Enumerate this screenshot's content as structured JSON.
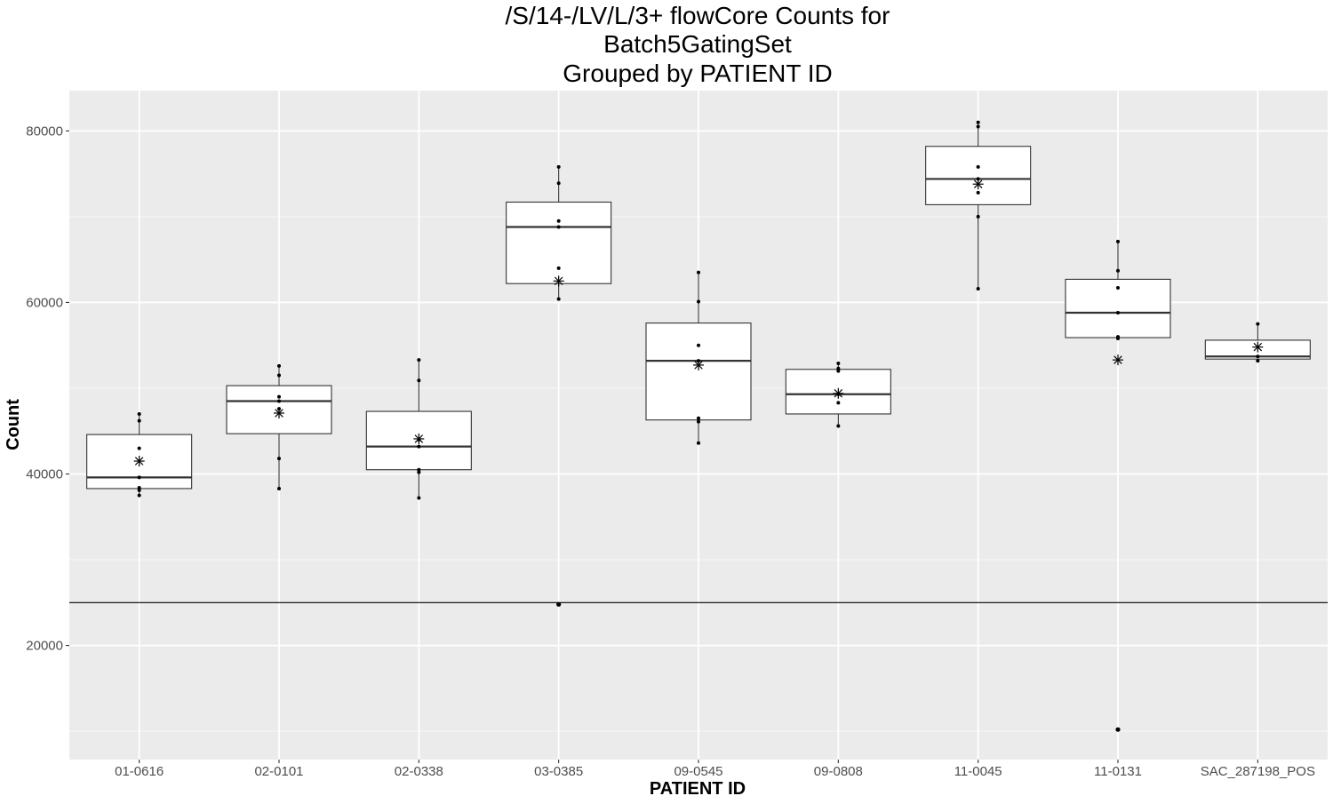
{
  "chart_data": {
    "type": "box",
    "title": [
      "/S/14-/LV/L/3+ flowCore Counts for",
      "Batch5GatingSet",
      "Grouped by PATIENT ID"
    ],
    "xlabel": "PATIENT ID",
    "ylabel": "Count",
    "ylim": [
      6700,
      84700
    ],
    "yticks": [
      20000,
      40000,
      60000,
      80000
    ],
    "ytick_labels": [
      "20000",
      "40000",
      "60000",
      "80000"
    ],
    "yminor": [
      10000,
      30000,
      50000,
      70000
    ],
    "threshold_line": 25000,
    "grid": true,
    "categories": [
      "01-0616",
      "02-0101",
      "02-0338",
      "03-0385",
      "09-0545",
      "09-0808",
      "11-0045",
      "11-0131",
      "SAC_287198_POS"
    ],
    "boxes": [
      {
        "category": "01-0616",
        "q1": 38300,
        "median": 39600,
        "q3": 44600,
        "whisker_low": 37500,
        "whisker_high": 47000,
        "mean": 41500,
        "outliers": [],
        "points": [
          47000,
          46200,
          43000,
          39600,
          38400,
          38100,
          37500
        ]
      },
      {
        "category": "02-0101",
        "q1": 44700,
        "median": 48500,
        "q3": 50300,
        "whisker_low": 38300,
        "whisker_high": 52600,
        "mean": 47100,
        "outliers": [],
        "points": [
          52600,
          51500,
          49000,
          48500,
          47600,
          41800,
          38300
        ]
      },
      {
        "category": "02-0338",
        "q1": 40500,
        "median": 43200,
        "q3": 47300,
        "whisker_low": 37200,
        "whisker_high": 53300,
        "mean": 44100,
        "outliers": [],
        "points": [
          53300,
          50900,
          44000,
          43200,
          40500,
          40200,
          37200
        ]
      },
      {
        "category": "03-0385",
        "q1": 62200,
        "median": 68800,
        "q3": 71700,
        "whisker_low": 60400,
        "whisker_high": 75800,
        "mean": 62500,
        "outliers": [
          24800
        ],
        "points": [
          75800,
          73900,
          69500,
          68800,
          64000,
          60400,
          24800
        ]
      },
      {
        "category": "09-0545",
        "q1": 46300,
        "median": 53200,
        "q3": 57600,
        "whisker_low": 43600,
        "whisker_high": 63500,
        "mean": 52700,
        "outliers": [],
        "points": [
          63500,
          60100,
          55000,
          53200,
          46500,
          46100,
          43600
        ]
      },
      {
        "category": "09-0808",
        "q1": 47000,
        "median": 49300,
        "q3": 52200,
        "whisker_low": 45600,
        "whisker_high": 52900,
        "mean": 49400,
        "outliers": [],
        "points": [
          52900,
          52300,
          52000,
          49300,
          48300,
          45600
        ]
      },
      {
        "category": "11-0045",
        "q1": 71400,
        "median": 74400,
        "q3": 78200,
        "whisker_low": 61600,
        "whisker_high": 81000,
        "mean": 73800,
        "outliers": [],
        "points": [
          81000,
          80500,
          75800,
          74400,
          72800,
          70000,
          61600
        ]
      },
      {
        "category": "11-0131",
        "q1": 55900,
        "median": 58800,
        "q3": 62700,
        "whisker_low": 55700,
        "whisker_high": 67100,
        "mean": 53300,
        "outliers": [
          10200
        ],
        "points": [
          67100,
          63700,
          61700,
          58800,
          56000,
          55800,
          10200
        ]
      },
      {
        "category": "SAC_287198_POS",
        "q1": 53400,
        "median": 53700,
        "q3": 55600,
        "whisker_low": 53200,
        "whisker_high": 57500,
        "mean": 54800,
        "outliers": [],
        "points": [
          57500,
          53700,
          53200
        ]
      }
    ]
  },
  "colors": {
    "panel_bg": "#ebebeb",
    "grid_major": "#ffffff",
    "grid_minor": "#f5f5f5",
    "box_fill": "#ffffff",
    "box_stroke": "#333333",
    "point": "#000000",
    "threshold": "#000000",
    "tick_text": "#4d4d4d",
    "title_text": "#000000"
  }
}
